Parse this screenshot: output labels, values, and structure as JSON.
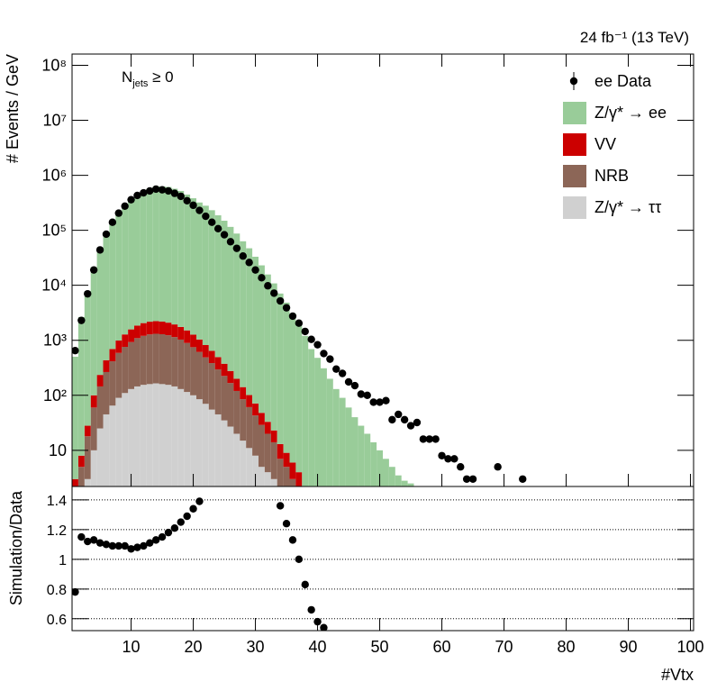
{
  "chart_data": [
    {
      "type": "bar",
      "stacked": true,
      "log": true,
      "annotations": {
        "lumi": "24 fb⁻¹ (13 TeV)",
        "selection": {
          "main": "N",
          "sub": "jets",
          "rest": " ≥ 0"
        }
      },
      "ylabel": "# Events / GeV",
      "x": [
        1,
        2,
        3,
        4,
        5,
        6,
        7,
        8,
        9,
        10,
        11,
        12,
        13,
        14,
        15,
        16,
        17,
        18,
        19,
        20,
        21,
        22,
        23,
        24,
        25,
        26,
        27,
        28,
        29,
        30,
        31,
        32,
        33,
        34,
        35,
        36,
        37,
        38,
        39,
        40,
        41,
        42,
        43,
        44,
        45,
        46,
        47,
        48,
        49,
        50,
        51,
        52,
        53,
        54,
        55,
        56,
        57,
        58,
        59,
        60,
        61,
        62,
        63,
        64,
        65,
        66,
        67,
        68,
        69,
        70,
        71,
        72,
        73
      ],
      "series": [
        {
          "name": "Z/γ* → ee",
          "color": "#99cc99",
          "values": [
            500,
            2640,
            7800,
            21400,
            48600,
            93000,
            152000,
            222000,
            298000,
            384000,
            462000,
            521000,
            575000,
            631000,
            625000,
            612000,
            567000,
            517000,
            444000,
            381000,
            319000,
            279000,
            231000,
            187000,
            149000,
            115000,
            87000,
            63000,
            47000,
            33000,
            23000,
            15700,
            10800,
            7070,
            4840,
            3100,
            2050,
            1200,
            690,
            480,
            310,
            200,
            130,
            90,
            60,
            40,
            28,
            20,
            14,
            10,
            7,
            5,
            3.5,
            2.8,
            2.5,
            0,
            0,
            0,
            0,
            0,
            0,
            0,
            0,
            0,
            0,
            0,
            0,
            0,
            0,
            0,
            0,
            0,
            0
          ]
        },
        {
          "name": "VV",
          "color": "#cc0000",
          "values": [
            1,
            3,
            10,
            40,
            90,
            170,
            280,
            400,
            520,
            650,
            760,
            850,
            900,
            920,
            900,
            860,
            800,
            720,
            620,
            520,
            420,
            330,
            260,
            200,
            150,
            110,
            80,
            56,
            40,
            28,
            19,
            13,
            9,
            6,
            4,
            3,
            2,
            1,
            1,
            0,
            0,
            0,
            0,
            0,
            0,
            0,
            0,
            0,
            0,
            0,
            0,
            0,
            0,
            0,
            0,
            0,
            0,
            0,
            0,
            0,
            0,
            0,
            0,
            0,
            0,
            0,
            0,
            0,
            0,
            0,
            0,
            0,
            0
          ]
        },
        {
          "name": "NRB",
          "color": "#8c6657",
          "values": [
            2,
            5,
            15,
            50,
            120,
            220,
            350,
            500,
            650,
            800,
            950,
            1050,
            1120,
            1150,
            1130,
            1080,
            1000,
            900,
            780,
            650,
            530,
            420,
            330,
            250,
            190,
            140,
            100,
            70,
            50,
            35,
            24,
            16,
            11,
            7,
            5,
            3,
            2,
            1,
            1,
            0,
            0,
            0,
            0,
            0,
            0,
            0,
            0,
            0,
            0,
            0,
            0,
            0,
            0,
            0,
            0,
            0,
            0,
            0,
            0,
            0,
            0,
            0,
            0,
            0,
            0,
            0,
            0,
            0,
            0,
            0,
            0,
            0,
            0
          ]
        },
        {
          "name": "Z/γ* → ττ",
          "color": "#d0d0d0",
          "values": [
            0,
            0,
            3,
            10,
            25,
            45,
            65,
            90,
            110,
            130,
            145,
            155,
            160,
            165,
            160,
            155,
            145,
            130,
            115,
            100,
            85,
            70,
            55,
            45,
            35,
            27,
            20,
            15,
            11,
            8,
            5,
            4,
            3,
            0,
            0,
            0,
            0,
            0,
            0,
            0,
            0,
            0,
            0,
            0,
            0,
            0,
            0,
            0,
            0,
            0,
            0,
            0,
            0,
            0,
            0,
            0,
            0,
            0,
            0,
            0,
            0,
            0,
            0,
            0,
            0,
            0,
            0,
            0,
            0,
            0,
            0,
            0,
            0
          ]
        }
      ],
      "data": {
        "name": "ee Data",
        "color": "#000000",
        "values": [
          650,
          2300,
          7000,
          19000,
          44000,
          85000,
          140000,
          205000,
          275000,
          360000,
          430000,
          480000,
          520000,
          560000,
          545000,
          520000,
          470000,
          415000,
          345000,
          285000,
          230000,
          180000,
          140000,
          107000,
          83000,
          62000,
          47000,
          34000,
          26000,
          19000,
          13700,
          9800,
          7200,
          5200,
          3900,
          2750,
          2050,
          1450,
          1040,
          830,
          575,
          455,
          300,
          250,
          175,
          150,
          105,
          100,
          75,
          75,
          80,
          36,
          45,
          36,
          28,
          32,
          16,
          16,
          16,
          8,
          7,
          7,
          5,
          3,
          3,
          null,
          null,
          null,
          5,
          null,
          null,
          null,
          3
        ]
      },
      "xlim": [
        0.5,
        100.5
      ],
      "xticks": [
        10,
        20,
        30,
        40,
        50,
        60,
        70,
        80,
        90,
        100
      ],
      "ylim": [
        2.2,
        160000000
      ],
      "yticks": [
        10,
        {
          "value": 100,
          "label": "10²"
        },
        {
          "value": 1000,
          "label": "10³"
        },
        {
          "value": 10000,
          "label": "10⁴"
        },
        {
          "value": 100000,
          "label": "10⁵"
        },
        {
          "value": 1000000,
          "label": "10⁶"
        },
        {
          "value": 10000000,
          "label": "10⁷"
        },
        {
          "value": 100000000,
          "label": "10⁸"
        }
      ],
      "legend": "top-right"
    },
    {
      "type": "scatter",
      "ylabel": "Simulation/Data",
      "xlabel": "#Vtx",
      "color": "#000000",
      "x": [
        1,
        2,
        3,
        4,
        5,
        6,
        7,
        8,
        9,
        10,
        11,
        12,
        13,
        14,
        15,
        16,
        17,
        18,
        19,
        20,
        21,
        22,
        23,
        24,
        25,
        26,
        27,
        28,
        29,
        30,
        31,
        32,
        33,
        34,
        35,
        36,
        37,
        38,
        39,
        40,
        41,
        42,
        43,
        44,
        45,
        46,
        47,
        48,
        49,
        50,
        51,
        52,
        53,
        54,
        55,
        56,
        57,
        58,
        59,
        60,
        61,
        62,
        63,
        64,
        65,
        66,
        67,
        68,
        69,
        70,
        71,
        72,
        73
      ],
      "values": [
        0.78,
        1.15,
        1.12,
        1.13,
        1.11,
        1.1,
        1.09,
        1.09,
        1.09,
        1.07,
        1.08,
        1.09,
        1.11,
        1.13,
        1.15,
        1.18,
        1.21,
        1.25,
        1.29,
        1.34,
        1.39,
        null,
        null,
        null,
        null,
        null,
        null,
        null,
        null,
        null,
        null,
        null,
        null,
        1.36,
        1.24,
        1.13,
        1,
        0.83,
        0.66,
        0.58,
        0.54,
        null,
        null,
        null,
        null,
        null,
        null,
        null,
        null,
        null,
        null,
        null,
        null,
        null,
        null,
        null,
        null,
        null,
        null,
        null,
        null,
        null,
        null,
        null,
        null,
        null,
        null,
        null,
        null,
        null,
        null,
        null,
        null
      ],
      "xlim": [
        0.5,
        100.5
      ],
      "xticks": [
        10,
        20,
        30,
        40,
        50,
        60,
        70,
        80,
        90,
        100
      ],
      "ylim": [
        0.52,
        1.49
      ],
      "yticks": [
        0.6,
        0.8,
        1,
        1.2,
        1.4
      ],
      "grid": true
    }
  ]
}
